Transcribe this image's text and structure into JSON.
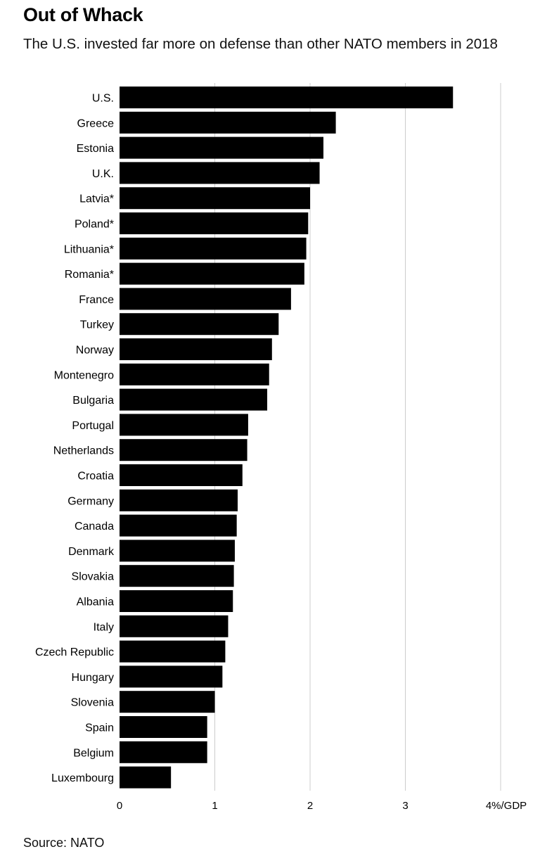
{
  "header": {
    "title": "Out of Whack",
    "subtitle": "The U.S. invested far more on defense than other NATO members in 2018"
  },
  "footer": {
    "source": "Source: NATO"
  },
  "colors": {
    "bar": "#000000",
    "grid": "#cccccc",
    "text": "#000000"
  },
  "chart_data": {
    "type": "bar",
    "orientation": "horizontal",
    "title": "Out of Whack",
    "subtitle": "The U.S. invested far more on defense than other NATO members in 2018",
    "xlabel": "",
    "ylabel": "",
    "xlim": [
      0,
      4
    ],
    "x_ticks": [
      0,
      1,
      2,
      3,
      4
    ],
    "x_tick_labels": [
      "0",
      "1",
      "2",
      "3",
      "4%/GDP"
    ],
    "grid": true,
    "legend": "none",
    "categories": [
      "U.S.",
      "Greece",
      "Estonia",
      "U.K.",
      "Latvia*",
      "Poland*",
      "Lithuania*",
      "Romania*",
      "France",
      "Turkey",
      "Norway",
      "Montenegro",
      "Bulgaria",
      "Portugal",
      "Netherlands",
      "Croatia",
      "Germany",
      "Canada",
      "Denmark",
      "Slovakia",
      "Albania",
      "Italy",
      "Czech Republic",
      "Hungary",
      "Slovenia",
      "Spain",
      "Belgium",
      "Luxembourg"
    ],
    "values": [
      3.5,
      2.27,
      2.14,
      2.1,
      2.0,
      1.98,
      1.96,
      1.94,
      1.8,
      1.67,
      1.6,
      1.57,
      1.55,
      1.35,
      1.34,
      1.29,
      1.24,
      1.23,
      1.21,
      1.2,
      1.19,
      1.14,
      1.11,
      1.08,
      1.0,
      0.92,
      0.92,
      0.54
    ],
    "source": "Source: NATO"
  }
}
